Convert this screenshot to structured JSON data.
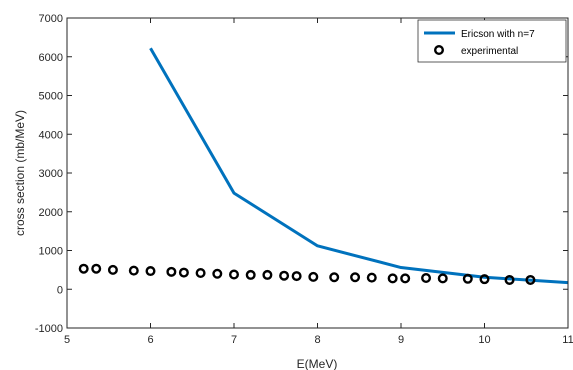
{
  "chart_data": {
    "type": "line",
    "xlabel": "E(MeV)",
    "ylabel": "cross section (mb/MeV)",
    "xlim": [
      5,
      11
    ],
    "ylim": [
      -1000,
      7000
    ],
    "xticks": [
      5,
      6,
      7,
      8,
      9,
      10,
      11
    ],
    "yticks": [
      -1000,
      0,
      1000,
      2000,
      3000,
      4000,
      5000,
      6000,
      7000
    ],
    "grid": false,
    "legend_position": "top-right",
    "series": [
      {
        "name": "Ericson with n=7",
        "kind": "line",
        "color": "#0072BD",
        "x": [
          6,
          7,
          8,
          9,
          10,
          11
        ],
        "y": [
          6220,
          2480,
          1120,
          560,
          310,
          170
        ]
      },
      {
        "name": "experimental",
        "kind": "scatter",
        "color": "#000000",
        "x": [
          5.2,
          5.35,
          5.55,
          5.8,
          6.0,
          6.25,
          6.4,
          6.6,
          6.8,
          7.0,
          7.2,
          7.4,
          7.6,
          7.75,
          7.95,
          8.2,
          8.45,
          8.65,
          8.9,
          9.05,
          9.3,
          9.5,
          9.8,
          10.0,
          10.3,
          10.55
        ],
        "y": [
          530,
          530,
          500,
          480,
          470,
          450,
          430,
          420,
          400,
          380,
          370,
          370,
          350,
          340,
          320,
          310,
          310,
          300,
          280,
          280,
          290,
          280,
          270,
          260,
          240,
          240
        ]
      }
    ]
  }
}
